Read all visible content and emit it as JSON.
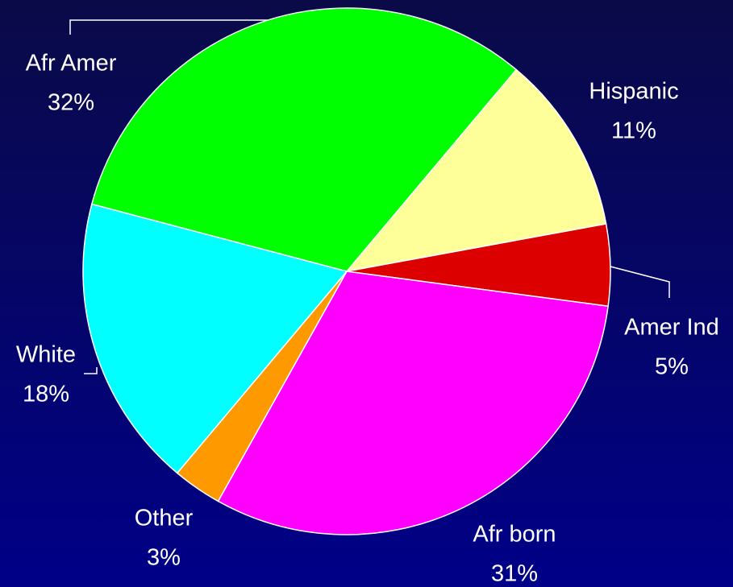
{
  "chart_data": {
    "type": "pie",
    "categories": [
      "Hispanic",
      "Amer Ind",
      "Afr born",
      "Other",
      "White",
      "Afr Amer"
    ],
    "values": [
      11,
      5,
      31,
      3,
      18,
      32
    ],
    "value_labels": [
      "11%",
      "5%",
      "31%",
      "3%",
      "18%",
      "32%"
    ],
    "colors": [
      "#ffff99",
      "#dd0000",
      "#ff00ff",
      "#ff9900",
      "#00ffff",
      "#00ff00"
    ]
  }
}
